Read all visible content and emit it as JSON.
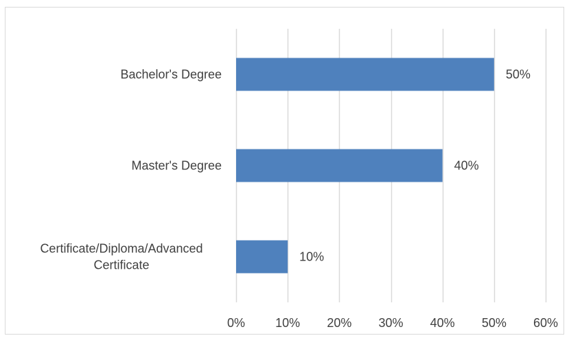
{
  "chart_data": {
    "type": "bar",
    "orientation": "horizontal",
    "categories": [
      "Bachelor's Degree",
      "Master's Degree",
      "Certificate/Diploma/Advanced Certificate"
    ],
    "category_lines": [
      [
        "Bachelor's Degree"
      ],
      [
        "Master's Degree"
      ],
      [
        "Certificate/Diploma/Advanced",
        "Certificate"
      ]
    ],
    "values": [
      50,
      40,
      10
    ],
    "data_labels": [
      "50%",
      "40%",
      "10%"
    ],
    "xlim": [
      0,
      60
    ],
    "x_ticks": [
      0,
      10,
      20,
      30,
      40,
      50,
      60
    ],
    "x_tick_labels": [
      "0%",
      "10%",
      "20%",
      "30%",
      "40%",
      "50%",
      "60%"
    ],
    "title": "",
    "xlabel": "",
    "ylabel": "",
    "grid": "vertical gridlines",
    "legend": "none",
    "bar_color": "#4f81bd",
    "grid_color": "#d9d9d9",
    "text_color": "#404040"
  }
}
